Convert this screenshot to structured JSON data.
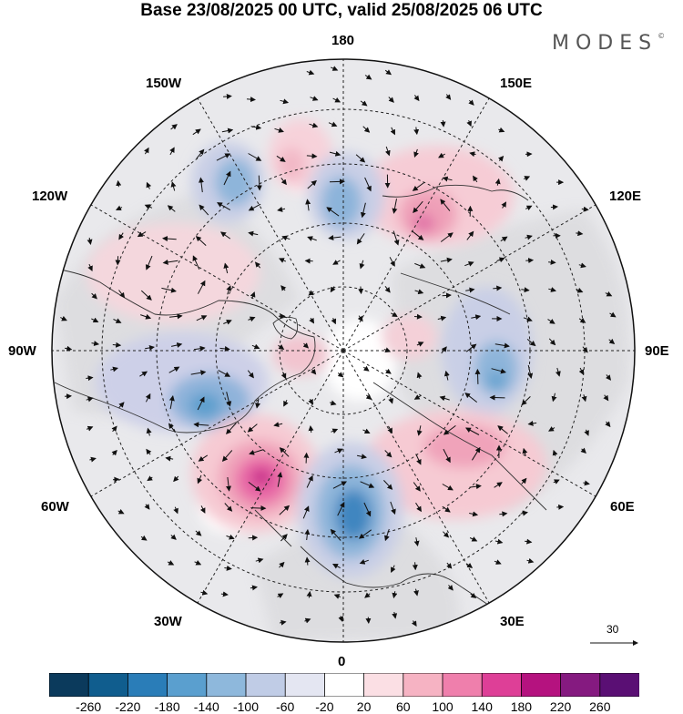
{
  "title": "Base 23/08/2025 00 UTC, valid 25/08/2025 06 UTC",
  "logo": "MODES",
  "logo_mark": "©",
  "longitude_labels": {
    "top": "180",
    "bottom": "0",
    "left": "90W",
    "right": "90E",
    "upper_left_outer": "150W",
    "upper_left_inner": "120W",
    "upper_right_outer": "150E",
    "upper_right_inner": "120E",
    "lower_left_outer": "60W",
    "lower_left_inner": "30W",
    "lower_right_outer": "60E",
    "lower_right_inner": "30E"
  },
  "reference_vector": "30",
  "colorbar": {
    "ticks": [
      "-260",
      "-220",
      "-180",
      "-140",
      "-100",
      "-60",
      "-20",
      "20",
      "60",
      "100",
      "140",
      "180",
      "220",
      "260"
    ],
    "colors": [
      "#0b3a5c",
      "#105d8e",
      "#2a7db8",
      "#5a9fcf",
      "#8eb8dc",
      "#c0cce6",
      "#e4e6f2",
      "#ffffff",
      "#fbdfe4",
      "#f6b3c3",
      "#ef7fac",
      "#de3f97",
      "#b5127f",
      "#851a80",
      "#5a0f74"
    ]
  }
}
